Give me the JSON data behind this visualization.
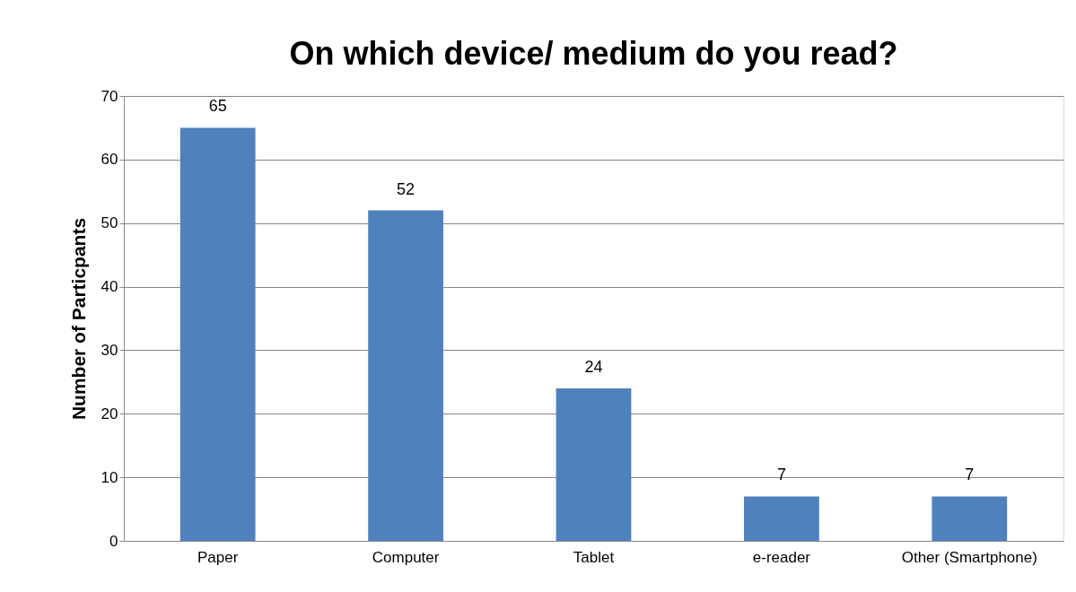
{
  "chart_data": {
    "type": "bar",
    "title": "On which device/ medium do you read?",
    "ylabel": "Number of Particpants",
    "categories": [
      "Paper",
      "Computer",
      "Tablet",
      "e-reader",
      "Other (Smartphone)"
    ],
    "values": [
      65,
      52,
      24,
      7,
      7
    ],
    "color": "#4f81bd",
    "ylim": [
      0,
      70
    ],
    "yticks": [
      0,
      10,
      20,
      30,
      40,
      50,
      60,
      70
    ],
    "grid": "y",
    "data_labels": true
  }
}
